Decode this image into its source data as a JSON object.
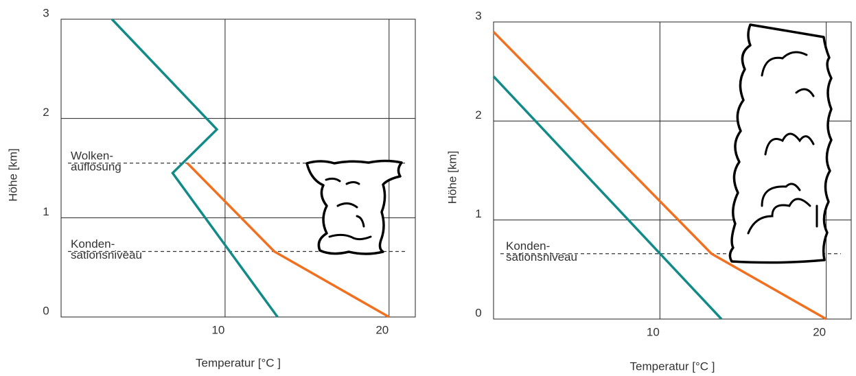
{
  "chart_data": [
    {
      "type": "line",
      "xlabel": "Temperatur [°C ]",
      "ylabel": "Höhe [km]",
      "xlim": [
        0,
        21.6
      ],
      "ylim": [
        0,
        3
      ],
      "xticks": [
        10,
        20
      ],
      "yticks": [
        0,
        1,
        2,
        3
      ],
      "grid": true,
      "series": [
        {
          "color": "#128a88",
          "x": [
            3.1,
            9.5,
            6.8,
            13.2
          ],
          "values": [
            3,
            1.89,
            1.45,
            0
          ]
        },
        {
          "color": "#f07020",
          "x": [
            7.7,
            13.0,
            20
          ],
          "values": [
            1.55,
            0.66,
            0
          ]
        }
      ],
      "reference_lines": [
        {
          "value": 1.55,
          "label": [
            "Wolken-",
            "auflösung"
          ]
        },
        {
          "value": 0.66,
          "label": [
            "Konden-",
            "sationsniveau"
          ]
        }
      ]
    },
    {
      "type": "line",
      "xlabel": "Temperatur [°C ]",
      "ylabel": "Höhe [km]",
      "xlim": [
        0,
        21.5
      ],
      "ylim": [
        0,
        3
      ],
      "xticks": [
        10,
        20
      ],
      "yticks": [
        0,
        1,
        2,
        3
      ],
      "grid": true,
      "series": [
        {
          "color": "#128a88",
          "x": [
            0,
            13.7
          ],
          "values": [
            2.45,
            0
          ]
        },
        {
          "color": "#f07020",
          "x": [
            0,
            13.1,
            20
          ],
          "values": [
            2.9,
            0.66,
            0
          ]
        }
      ],
      "reference_lines": [
        {
          "value": 0.66,
          "label": [
            "Konden-",
            "sationsniveau"
          ]
        }
      ]
    }
  ]
}
